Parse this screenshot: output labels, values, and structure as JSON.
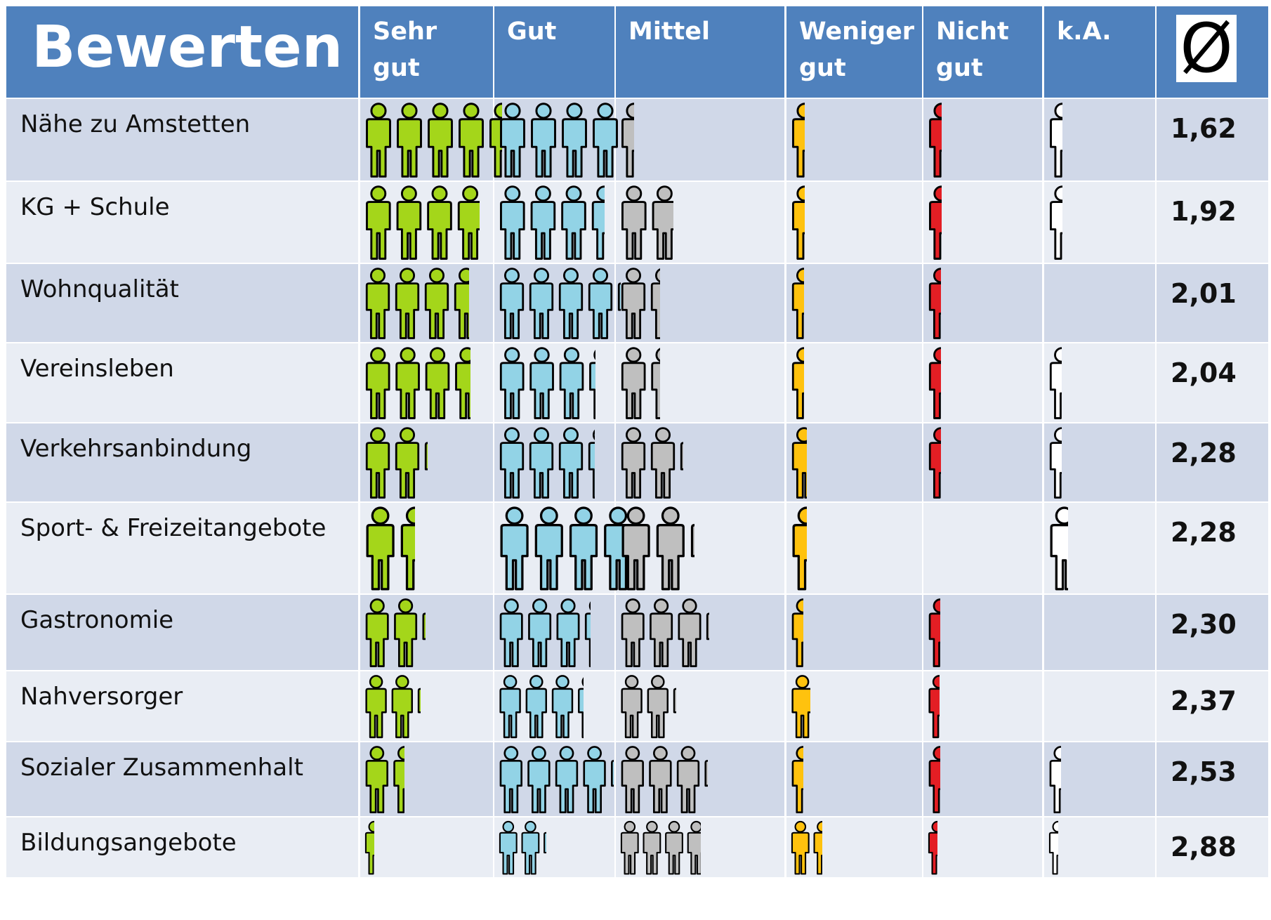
{
  "header": {
    "title": "Bewerten",
    "columns": [
      "Sehr gut",
      "Gut",
      "Mittel",
      "Weniger gut",
      "Nicht gut",
      "k.A."
    ],
    "average_symbol": "Ø"
  },
  "icon_colors": [
    "#a4d61a",
    "#92d3e6",
    "#bfbfbf",
    "#ffc20e",
    "#e31e24",
    "#ffffff"
  ],
  "table": {
    "rows": [
      {
        "label": "Nähe zu Amstetten",
        "icons": [
          4.5,
          3.9,
          0.5,
          0.5,
          0.5,
          0.5
        ],
        "average": "1,62"
      },
      {
        "label": "KG + Schule",
        "icons": [
          3.8,
          3.5,
          1.8,
          0.5,
          0.5,
          0.5
        ],
        "average": "1,92"
      },
      {
        "label": "Wohnqualität",
        "icons": [
          3.6,
          4.2,
          1.4,
          0.5,
          0.5,
          0
        ],
        "average": "2,01"
      },
      {
        "label": "Vereinsleben",
        "icons": [
          3.6,
          3.3,
          1.4,
          0.5,
          0.5,
          0.5
        ],
        "average": "2,04"
      },
      {
        "label": "Verkehrsanbindung",
        "icons": [
          2.2,
          3.3,
          2.2,
          0.6,
          0.5,
          0.5
        ],
        "average": "2,28"
      },
      {
        "label": "Sport- & Freizeitangebote",
        "icons": [
          1.5,
          4.2,
          2.2,
          0.5,
          0,
          0.6
        ],
        "average": "2,28"
      },
      {
        "label": "Gastronomie",
        "icons": [
          2.2,
          3.3,
          3.2,
          0.5,
          0.5,
          0
        ],
        "average": "2,30"
      },
      {
        "label": "Nahversorger",
        "icons": [
          2.2,
          3.3,
          2.2,
          0.8,
          0.5,
          0
        ],
        "average": "2,37"
      },
      {
        "label": "Sozialer Zusammenhalt",
        "icons": [
          1.5,
          4.2,
          3.2,
          0.5,
          0.5,
          0.5
        ],
        "average": "2,53"
      },
      {
        "label": "Bildungsangebote",
        "icons": [
          0.5,
          2.2,
          3.7,
          1.5,
          0.5,
          0.5
        ],
        "average": "2,88"
      }
    ]
  }
}
